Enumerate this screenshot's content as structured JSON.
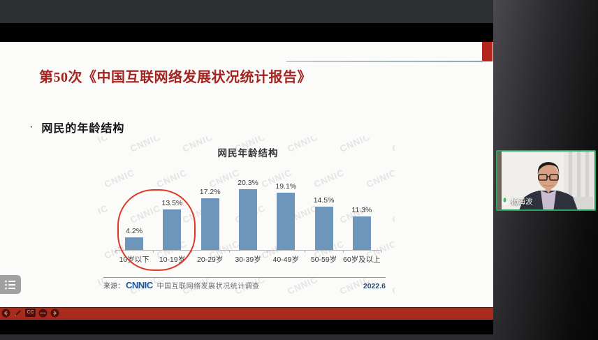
{
  "meeting": {
    "speaker_name": "杨海波"
  },
  "slide": {
    "title": "第50次《中国互联网络发展状况统计报告》",
    "bullet_marker": "·",
    "bullet_text": "网民的年龄结构"
  },
  "chart_data": {
    "type": "bar",
    "title": "网民年龄结构",
    "categories": [
      "10岁以下",
      "10-19岁",
      "20-29岁",
      "30-39岁",
      "40-49岁",
      "50-59岁",
      "60岁及以上"
    ],
    "values": [
      4.2,
      13.5,
      17.2,
      20.3,
      19.1,
      14.5,
      11.3
    ],
    "value_suffix": "%",
    "ylim": [
      0,
      22
    ],
    "grid": false,
    "legend": null,
    "bar_color": "#6e96bb",
    "annotation": {
      "type": "oval",
      "color": "#dd3a28",
      "around_categories": [
        "10岁以下",
        "10-19岁"
      ]
    },
    "watermark_text": "CNNIC",
    "source": {
      "prefix": "来源：",
      "logo": "CNNIC",
      "text": "中国互联网络发展状况统计调查",
      "date": "2022.6"
    }
  },
  "toolbar": {
    "cc_label": "CC",
    "icons": [
      "previous-slide",
      "annotate-pen",
      "closed-captions",
      "more-options",
      "next-slide"
    ]
  },
  "colors": {
    "accent_red_bar": "#a82b1e",
    "slide_title_red": "#a32420",
    "slide_accent_block": "#b3251d",
    "bar_blue": "#6e96bb",
    "active_speaker_green": "#29a35c",
    "source_logo_blue": "#1e57a0"
  }
}
